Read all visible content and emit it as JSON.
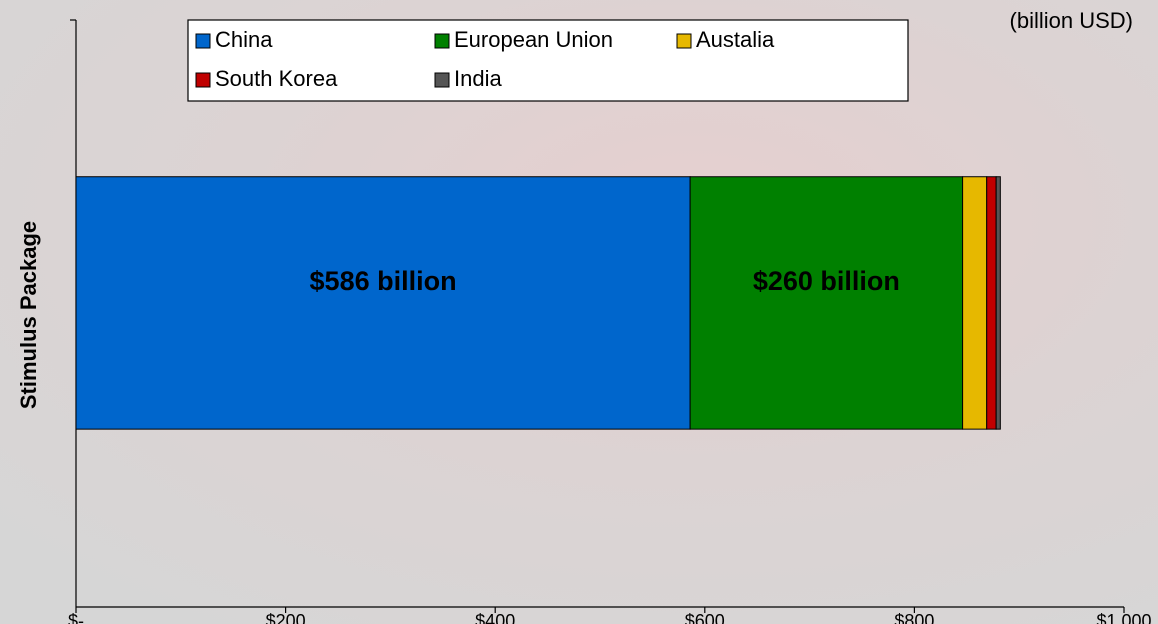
{
  "chart_data": {
    "type": "stacked-barh",
    "annotation": "(billion USD)",
    "y_label": "Stimulus Package",
    "categories": [
      null
    ],
    "series": [
      {
        "name": "China",
        "color": "#0066cc",
        "values": [
          586
        ],
        "value_labels": [
          "$586 billion"
        ]
      },
      {
        "name": "European Union",
        "color": "#008000",
        "values": [
          260
        ],
        "value_labels": [
          "$260 billion"
        ]
      },
      {
        "name": "Austalia",
        "color": "#e6b800",
        "values": [
          23
        ]
      },
      {
        "name": "South Korea",
        "color": "#c00000",
        "values": [
          9
        ]
      },
      {
        "name": "India",
        "color": "#555555",
        "values": [
          4
        ]
      }
    ],
    "xlim": [
      0,
      1000
    ],
    "xticks": [
      {
        "value": 0,
        "label": "$-"
      },
      {
        "value": 200,
        "label": "$200"
      },
      {
        "value": 400,
        "label": "$400"
      },
      {
        "value": 600,
        "label": "$600"
      },
      {
        "value": 800,
        "label": "$800"
      },
      {
        "value": 1000,
        "label": "$1,000"
      }
    ],
    "legend": "top"
  }
}
